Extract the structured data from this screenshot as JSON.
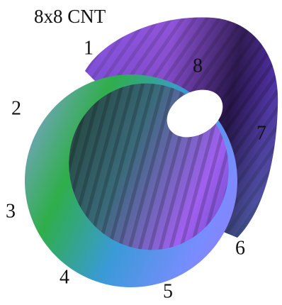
{
  "title": "8x8 CNT",
  "labels": [
    "1",
    "2",
    "3",
    "4",
    "5",
    "6",
    "7",
    "8"
  ]
}
